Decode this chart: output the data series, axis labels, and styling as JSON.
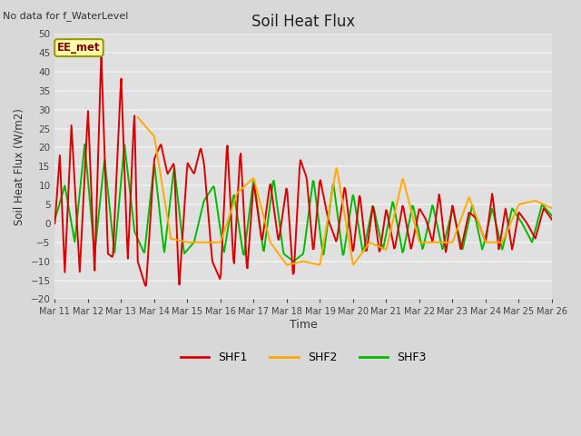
{
  "title": "Soil Heat Flux",
  "top_left_text": "No data for f_WaterLevel",
  "annotation_box": "EE_met",
  "ylabel": "Soil Heat Flux (W/m2)",
  "xlabel": "Time",
  "ylim": [
    -20,
    50
  ],
  "yticks": [
    -20,
    -15,
    -10,
    -5,
    0,
    5,
    10,
    15,
    20,
    25,
    30,
    35,
    40,
    45,
    50
  ],
  "xtick_labels": [
    "Mar 11",
    "Mar 12",
    "Mar 13",
    "Mar 14",
    "Mar 15",
    "Mar 16",
    "Mar 17",
    "Mar 18",
    "Mar 19",
    "Mar 20",
    "Mar 21",
    "Mar 22",
    "Mar 23",
    "Mar 24",
    "Mar 25",
    "Mar 26"
  ],
  "background_color": "#d8d8d8",
  "plot_bg_color": "#e0e0e0",
  "grid_color": "#f0f0f0",
  "shf1_color": "#dd0000",
  "shf2_color": "#ffaa00",
  "shf3_color": "#00bb00",
  "line_width": 1.4,
  "shf1_x": [
    0,
    0.15,
    0.3,
    0.5,
    0.75,
    1.0,
    1.2,
    1.4,
    1.6,
    1.75,
    2.0,
    2.2,
    2.4,
    2.5,
    2.75,
    3.0,
    3.2,
    3.4,
    3.6,
    3.75,
    4.0,
    4.2,
    4.4,
    4.5,
    4.75,
    5.0,
    5.2,
    5.4,
    5.6,
    5.8,
    6.0,
    6.25,
    6.5,
    6.75,
    7.0,
    7.2,
    7.4,
    7.6,
    7.8,
    8.0,
    8.25,
    8.5,
    8.75,
    9.0,
    9.2,
    9.4,
    9.6,
    9.8,
    10.0,
    10.25,
    10.5,
    10.75,
    11.0,
    11.2,
    11.4,
    11.6,
    11.8,
    12.0,
    12.25,
    12.5,
    12.75,
    13.0,
    13.2,
    13.4,
    13.6,
    13.8,
    14.0,
    14.25,
    14.5,
    14.75,
    15.0
  ],
  "shf1_y": [
    0,
    18,
    -13,
    26,
    -13,
    30,
    -13,
    45,
    -8,
    -9,
    39,
    -10,
    30,
    -10,
    -17,
    17,
    21,
    13,
    16,
    -17,
    16,
    13,
    20,
    16,
    -10,
    -15,
    22,
    -12,
    20,
    -13,
    11,
    -5,
    11,
    -5,
    10,
    -15,
    17,
    12,
    -8,
    12,
    1,
    -5,
    10,
    -8,
    8,
    -8,
    5,
    -8,
    4,
    -7,
    5,
    -7,
    4,
    1,
    -5,
    8,
    -8,
    5,
    -7,
    3,
    1,
    -5,
    8,
    -7,
    4,
    -7,
    3,
    0,
    -4,
    4,
    1
  ],
  "shf2_x": [
    2.5,
    3.0,
    3.5,
    4.0,
    4.5,
    5.0,
    5.5,
    6.0,
    6.5,
    7.0,
    7.5,
    8.0,
    8.5,
    9.0,
    9.5,
    10.0,
    10.5,
    11.0,
    11.5,
    12.0,
    12.5,
    13.0,
    13.5,
    14.0,
    14.5,
    15.0
  ],
  "shf2_y": [
    28,
    23,
    -4,
    -5,
    -5,
    -5,
    8,
    12,
    -5,
    -11,
    -10,
    -11,
    15,
    -11,
    -5,
    -7,
    12,
    -5,
    -5,
    -5,
    7,
    -5,
    -5,
    5,
    6,
    4
  ],
  "shf3_x": [
    0,
    0.3,
    0.6,
    0.9,
    1.2,
    1.5,
    1.8,
    2.1,
    2.4,
    2.7,
    3.0,
    3.3,
    3.6,
    3.9,
    4.2,
    4.5,
    4.8,
    5.1,
    5.4,
    5.7,
    6.0,
    6.3,
    6.6,
    6.9,
    7.2,
    7.5,
    7.8,
    8.1,
    8.4,
    8.7,
    9.0,
    9.3,
    9.6,
    9.9,
    10.2,
    10.5,
    10.8,
    11.1,
    11.4,
    11.7,
    12.0,
    12.3,
    12.6,
    12.9,
    13.2,
    13.5,
    13.8,
    14.1,
    14.4,
    14.7,
    15.0
  ],
  "shf3_y": [
    1,
    10,
    -5,
    21,
    -8,
    17,
    -8,
    21,
    -2,
    -8,
    16,
    -8,
    15,
    -8,
    -5,
    6,
    10,
    -8,
    8,
    -9,
    12,
    -8,
    12,
    -8,
    -10,
    -8,
    12,
    -9,
    11,
    -9,
    8,
    -8,
    5,
    -7,
    6,
    -8,
    5,
    -7,
    5,
    -7,
    4,
    -7,
    5,
    -7,
    4,
    -7,
    4,
    0,
    -5,
    5,
    2
  ]
}
